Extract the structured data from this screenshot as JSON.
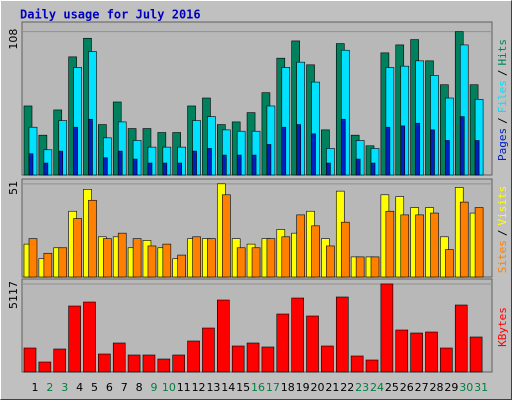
{
  "chart_data": {
    "type": "bar",
    "title": "Daily usage for July 2016",
    "categories": [
      "1",
      "2",
      "3",
      "4",
      "5",
      "6",
      "7",
      "8",
      "9",
      "10",
      "11",
      "12",
      "13",
      "14",
      "15",
      "16",
      "17",
      "18",
      "19",
      "20",
      "21",
      "22",
      "23",
      "24",
      "25",
      "26",
      "27",
      "28",
      "29",
      "30",
      "31"
    ],
    "category_colors": [
      "#000000",
      "#008040",
      "#008040",
      "#000000",
      "#000000",
      "#000000",
      "#000000",
      "#000000",
      "#008040",
      "#008040",
      "#000000",
      "#000000",
      "#000000",
      "#000000",
      "#000000",
      "#008040",
      "#008040",
      "#000000",
      "#000000",
      "#000000",
      "#000000",
      "#000000",
      "#008040",
      "#008040",
      "#000000",
      "#000000",
      "#000000",
      "#000000",
      "#000000",
      "#008040",
      "#008040"
    ],
    "panels": [
      {
        "ylim": [
          0,
          113
        ],
        "yticks": [
          108
        ],
        "legend_separator": "/",
        "series": [
          {
            "name": "Hits",
            "color": "#00805c",
            "values": [
              52,
              30,
              49,
              89,
              103,
              38,
              55,
              35,
              35,
              32,
              32,
              52,
              58,
              38,
              40,
              47,
              62,
              88,
              101,
              83,
              34,
              99,
              30,
              22,
              92,
              98,
              102,
              86,
              68,
              108,
              68
            ]
          },
          {
            "name": "Files",
            "color": "#00e0ff",
            "values": [
              36,
              19,
              41,
              81,
              93,
              28,
              40,
              26,
              21,
              21,
              21,
              41,
              44,
              34,
              33,
              33,
              52,
              81,
              85,
              70,
              20,
              94,
              26,
              20,
              81,
              82,
              86,
              75,
              58,
              98,
              57
            ]
          },
          {
            "name": "Pages",
            "color": "#0020c0",
            "values": [
              16,
              9,
              18,
              36,
              42,
              13,
              18,
              12,
              9,
              9,
              9,
              18,
              20,
              15,
              15,
              15,
              23,
              36,
              38,
              31,
              9,
              42,
              12,
              9,
              36,
              37,
              39,
              34,
              26,
              44,
              26
            ]
          }
        ]
      },
      {
        "ylim": [
          0,
          52
        ],
        "yticks": [
          51
        ],
        "legend_separator": "/",
        "series": [
          {
            "name": "Visits",
            "color": "#ffff00",
            "values": [
              18,
              10,
              16,
              36,
              48,
              22,
              22,
              16,
              20,
              16,
              10,
              21,
              21,
              51,
              21,
              18,
              21,
              26,
              24,
              36,
              21,
              47,
              11,
              11,
              45,
              44,
              38,
              38,
              22,
              49,
              35
            ]
          },
          {
            "name": "Sites",
            "color": "#ff8000",
            "values": [
              21,
              13,
              16,
              32,
              42,
              21,
              24,
              21,
              17,
              18,
              12,
              22,
              21,
              45,
              16,
              16,
              21,
              22,
              34,
              28,
              17,
              30,
              11,
              11,
              36,
              34,
              34,
              35,
              15,
              41,
              38
            ]
          }
        ]
      },
      {
        "ylim": [
          0,
          5230
        ],
        "yticks": [
          5117
        ],
        "series": [
          {
            "name": "KBytes",
            "color": "#ff0000",
            "values": [
              1394,
              581,
              1336,
              3835,
              4067,
              1046,
              1685,
              988,
              988,
              755,
              988,
              1801,
              2556,
              4183,
              1511,
              1685,
              1453,
              3370,
              4299,
              3254,
              1511,
              4358,
              930,
              697,
              5117,
              2440,
              2266,
              2324,
              1394,
              3893,
              2034
            ]
          }
        ]
      }
    ]
  }
}
